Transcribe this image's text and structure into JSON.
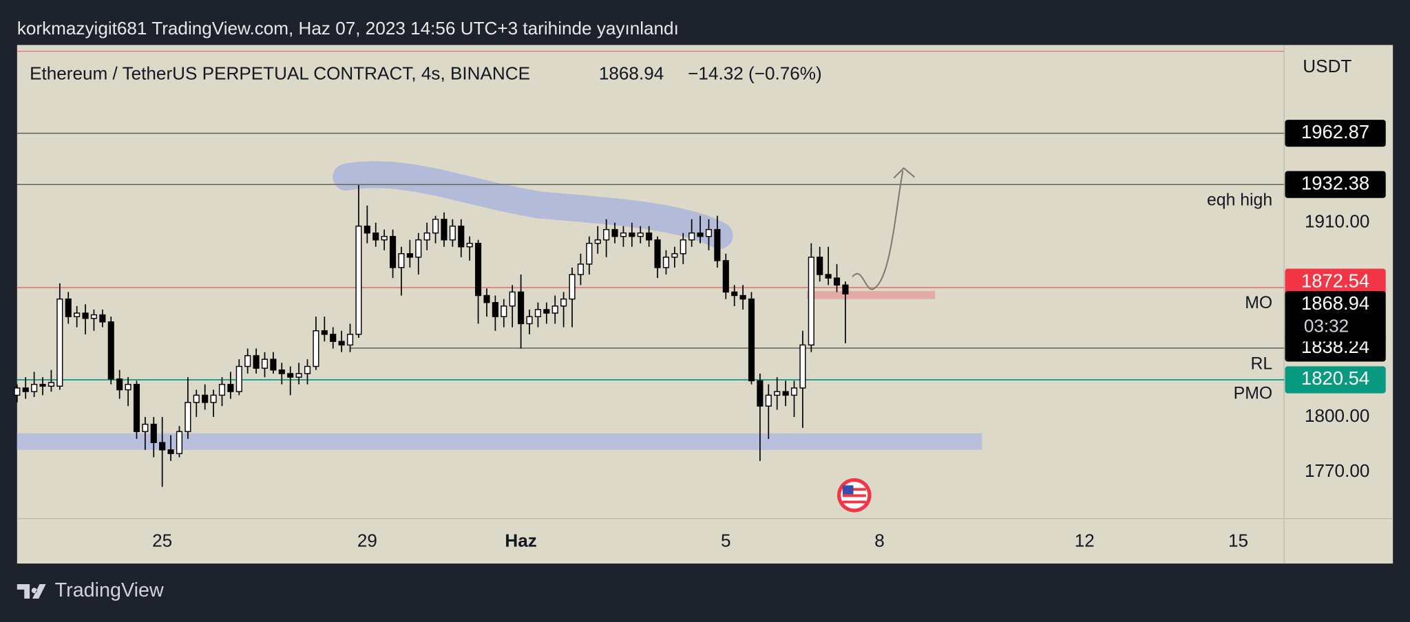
{
  "header": "korkmazyigit681 TradingView.com, Haz 07, 2023 14:56 UTC+3 tarihinde yayınlandı",
  "footer": "TradingView",
  "chart_data": {
    "type": "candlestick",
    "legend": {
      "symbol": "Ethereum / TetherUS PERPETUAL CONTRACT, 4s, BINANCE",
      "last": 1868.94,
      "change": "−14.32 (−0.76%)"
    },
    "currency": "USDT",
    "log_scale": true,
    "ylim": [
      1745,
      2016.5
    ],
    "yticks": [
      {
        "value": 1910,
        "label": "1910.00"
      },
      {
        "value": 1800,
        "label": "1800.00"
      },
      {
        "value": 1770,
        "label": "1770.00"
      }
    ],
    "xlim": [
      "2023-05-22T04:00",
      "2023-06-15T21:30"
    ],
    "xticks": [
      {
        "value": "2023-05-25T00:00",
        "label": "25"
      },
      {
        "value": "2023-05-29T00:00",
        "label": "29"
      },
      {
        "value": "2023-06-01T00:00",
        "label": "Haz"
      },
      {
        "value": "2023-06-05T00:00",
        "label": "5"
      },
      {
        "value": "2023-06-08T00:00",
        "label": "8"
      },
      {
        "value": "2023-06-12T00:00",
        "label": "12"
      },
      {
        "value": "2023-06-15T00:00",
        "label": "15"
      }
    ],
    "levels": [
      {
        "value": 1962.87,
        "label": "1962.87",
        "color": "#6b6b66",
        "tag": "#000000"
      },
      {
        "value": 1932.38,
        "label": "1932.38",
        "color": "#6b6b66",
        "tag": "#000000"
      },
      {
        "value": 1872.54,
        "label": "1872.54",
        "color": "#e57373",
        "tag": "#f23645"
      },
      {
        "value": 1838.24,
        "label": "1838.24",
        "color": "#6b6b66",
        "tag": "#000000",
        "from": "2023-05-28T16:00"
      },
      {
        "value": 1820.54,
        "label": "1820.54",
        "color": "#089981",
        "tag": "#089981"
      }
    ],
    "last_tag": {
      "value": 1868.94,
      "label": "1868.94",
      "countdown": "03:32"
    },
    "annotations": [
      "eqh high",
      "MO",
      "RL",
      "PMO"
    ],
    "zones": [
      {
        "low": 1782,
        "high": 1791,
        "from": "2023-05-22T04:00",
        "to": "2023-06-10T00:00",
        "color": "#b8bfdc"
      },
      {
        "low": 1866,
        "high": 1870.5,
        "from": "2023-06-06T14:00",
        "to": "2023-06-09T02:00",
        "color": "#e3a9a5"
      }
    ],
    "x": [
      "2023-05-22T04:00",
      "2023-05-22T08:00",
      "2023-05-22T12:00",
      "2023-05-22T16:00",
      "2023-05-22T20:00",
      "2023-05-23T00:00",
      "2023-05-23T04:00",
      "2023-05-23T08:00",
      "2023-05-23T12:00",
      "2023-05-23T16:00",
      "2023-05-23T20:00",
      "2023-05-24T00:00",
      "2023-05-24T04:00",
      "2023-05-24T08:00",
      "2023-05-24T12:00",
      "2023-05-24T16:00",
      "2023-05-24T20:00",
      "2023-05-25T00:00",
      "2023-05-25T04:00",
      "2023-05-25T08:00",
      "2023-05-25T12:00",
      "2023-05-25T16:00",
      "2023-05-25T20:00",
      "2023-05-26T00:00",
      "2023-05-26T04:00",
      "2023-05-26T08:00",
      "2023-05-26T12:00",
      "2023-05-26T16:00",
      "2023-05-26T20:00",
      "2023-05-27T00:00",
      "2023-05-27T04:00",
      "2023-05-27T08:00",
      "2023-05-27T12:00",
      "2023-05-27T16:00",
      "2023-05-27T20:00",
      "2023-05-28T00:00",
      "2023-05-28T04:00",
      "2023-05-28T08:00",
      "2023-05-28T12:00",
      "2023-05-28T16:00",
      "2023-05-28T20:00",
      "2023-05-29T00:00",
      "2023-05-29T04:00",
      "2023-05-29T08:00",
      "2023-05-29T12:00",
      "2023-05-29T16:00",
      "2023-05-29T20:00",
      "2023-05-30T00:00",
      "2023-05-30T04:00",
      "2023-05-30T08:00",
      "2023-05-30T12:00",
      "2023-05-30T16:00",
      "2023-05-30T20:00",
      "2023-05-31T00:00",
      "2023-05-31T04:00",
      "2023-05-31T08:00",
      "2023-05-31T12:00",
      "2023-05-31T16:00",
      "2023-05-31T20:00",
      "2023-06-01T00:00",
      "2023-06-01T04:00",
      "2023-06-01T08:00",
      "2023-06-01T12:00",
      "2023-06-01T16:00",
      "2023-06-01T20:00",
      "2023-06-02T00:00",
      "2023-06-02T04:00",
      "2023-06-02T08:00",
      "2023-06-02T12:00",
      "2023-06-02T16:00",
      "2023-06-02T20:00",
      "2023-06-03T00:00",
      "2023-06-03T04:00",
      "2023-06-03T08:00",
      "2023-06-03T12:00",
      "2023-06-03T16:00",
      "2023-06-03T20:00",
      "2023-06-04T00:00",
      "2023-06-04T04:00",
      "2023-06-04T08:00",
      "2023-06-04T12:00",
      "2023-06-04T16:00",
      "2023-06-04T20:00",
      "2023-06-05T00:00",
      "2023-06-05T04:00",
      "2023-06-05T08:00",
      "2023-06-05T12:00",
      "2023-06-05T16:00",
      "2023-06-05T20:00",
      "2023-06-06T00:00",
      "2023-06-06T04:00",
      "2023-06-06T08:00",
      "2023-06-06T12:00",
      "2023-06-06T16:00",
      "2023-06-06T20:00",
      "2023-06-07T00:00",
      "2023-06-07T04:00",
      "2023-06-07T08:00"
    ],
    "candles": [
      [
        1812,
        1818,
        1808,
        1816
      ],
      [
        1816,
        1822,
        1810,
        1814
      ],
      [
        1814,
        1825,
        1811,
        1818
      ],
      [
        1818,
        1822,
        1812,
        1817
      ],
      [
        1817,
        1826,
        1814,
        1819
      ],
      [
        1817,
        1875,
        1815,
        1866
      ],
      [
        1866,
        1870,
        1852,
        1856
      ],
      [
        1856,
        1862,
        1850,
        1858
      ],
      [
        1858,
        1863,
        1846,
        1855
      ],
      [
        1855,
        1860,
        1848,
        1857
      ],
      [
        1857,
        1860,
        1850,
        1853
      ],
      [
        1853,
        1856,
        1818,
        1821
      ],
      [
        1821,
        1826,
        1810,
        1815
      ],
      [
        1815,
        1822,
        1806,
        1818
      ],
      [
        1818,
        1820,
        1788,
        1792
      ],
      [
        1792,
        1800,
        1782,
        1796
      ],
      [
        1796,
        1800,
        1778,
        1786
      ],
      [
        1786,
        1800,
        1762,
        1782
      ],
      [
        1782,
        1790,
        1776,
        1780
      ],
      [
        1780,
        1795,
        1778,
        1792
      ],
      [
        1792,
        1822,
        1788,
        1808
      ],
      [
        1808,
        1815,
        1800,
        1812
      ],
      [
        1812,
        1818,
        1804,
        1808
      ],
      [
        1808,
        1815,
        1800,
        1812
      ],
      [
        1812,
        1822,
        1806,
        1818
      ],
      [
        1818,
        1825,
        1810,
        1814
      ],
      [
        1814,
        1832,
        1812,
        1828
      ],
      [
        1828,
        1838,
        1824,
        1834
      ],
      [
        1834,
        1838,
        1824,
        1827
      ],
      [
        1827,
        1836,
        1822,
        1832
      ],
      [
        1832,
        1836,
        1824,
        1826
      ],
      [
        1826,
        1830,
        1818,
        1824
      ],
      [
        1824,
        1828,
        1812,
        1822
      ],
      [
        1822,
        1830,
        1818,
        1824
      ],
      [
        1824,
        1832,
        1818,
        1828
      ],
      [
        1828,
        1856,
        1826,
        1848
      ],
      [
        1848,
        1856,
        1842,
        1846
      ],
      [
        1846,
        1850,
        1838,
        1842
      ],
      [
        1842,
        1848,
        1836,
        1840
      ],
      [
        1840,
        1852,
        1836,
        1846
      ],
      [
        1846,
        1932,
        1844,
        1908
      ],
      [
        1908,
        1920,
        1898,
        1904
      ],
      [
        1904,
        1910,
        1896,
        1900
      ],
      [
        1900,
        1906,
        1894,
        1902
      ],
      [
        1902,
        1906,
        1878,
        1884
      ],
      [
        1884,
        1896,
        1868,
        1892
      ],
      [
        1892,
        1900,
        1884,
        1890
      ],
      [
        1890,
        1904,
        1880,
        1900
      ],
      [
        1900,
        1910,
        1894,
        1904
      ],
      [
        1904,
        1914,
        1898,
        1912
      ],
      [
        1912,
        1916,
        1896,
        1900
      ],
      [
        1900,
        1912,
        1896,
        1908
      ],
      [
        1908,
        1912,
        1890,
        1896
      ],
      [
        1896,
        1902,
        1888,
        1898
      ],
      [
        1898,
        1900,
        1852,
        1868
      ],
      [
        1868,
        1872,
        1856,
        1864
      ],
      [
        1864,
        1868,
        1848,
        1856
      ],
      [
        1856,
        1866,
        1850,
        1862
      ],
      [
        1862,
        1874,
        1850,
        1870
      ],
      [
        1870,
        1880,
        1838,
        1852
      ],
      [
        1852,
        1860,
        1846,
        1856
      ],
      [
        1856,
        1864,
        1850,
        1860
      ],
      [
        1860,
        1864,
        1852,
        1858
      ],
      [
        1858,
        1868,
        1852,
        1862
      ],
      [
        1862,
        1870,
        1850,
        1866
      ],
      [
        1866,
        1884,
        1850,
        1880
      ],
      [
        1880,
        1892,
        1874,
        1886
      ],
      [
        1886,
        1902,
        1880,
        1898
      ],
      [
        1898,
        1908,
        1892,
        1900
      ],
      [
        1900,
        1912,
        1890,
        1906
      ],
      [
        1906,
        1910,
        1898,
        1902
      ],
      [
        1902,
        1908,
        1896,
        1904
      ],
      [
        1904,
        1910,
        1896,
        1902
      ],
      [
        1902,
        1908,
        1898,
        1904
      ],
      [
        1904,
        1908,
        1896,
        1900
      ],
      [
        1900,
        1902,
        1878,
        1884
      ],
      [
        1884,
        1894,
        1880,
        1890
      ],
      [
        1890,
        1896,
        1884,
        1892
      ],
      [
        1892,
        1904,
        1886,
        1900
      ],
      [
        1900,
        1912,
        1896,
        1904
      ],
      [
        1904,
        1914,
        1898,
        1902
      ],
      [
        1902,
        1912,
        1894,
        1906
      ],
      [
        1906,
        1914,
        1884,
        1888
      ],
      [
        1888,
        1892,
        1866,
        1870
      ],
      [
        1870,
        1874,
        1862,
        1868
      ],
      [
        1868,
        1874,
        1860,
        1866
      ],
      [
        1866,
        1870,
        1818,
        1820
      ],
      [
        1820,
        1824,
        1776,
        1806
      ],
      [
        1806,
        1818,
        1788,
        1812
      ],
      [
        1812,
        1822,
        1804,
        1814
      ],
      [
        1814,
        1820,
        1806,
        1812
      ],
      [
        1812,
        1820,
        1800,
        1816
      ],
      [
        1816,
        1848,
        1794,
        1840
      ],
      [
        1840,
        1898,
        1836,
        1890
      ],
      [
        1890,
        1896,
        1876,
        1880
      ],
      [
        1880,
        1896,
        1874,
        1878
      ],
      [
        1878,
        1886,
        1870,
        1874
      ],
      [
        1874,
        1876,
        1841,
        1868.94
      ]
    ],
    "up_color": "#ffffff",
    "down_color": "#000000"
  }
}
